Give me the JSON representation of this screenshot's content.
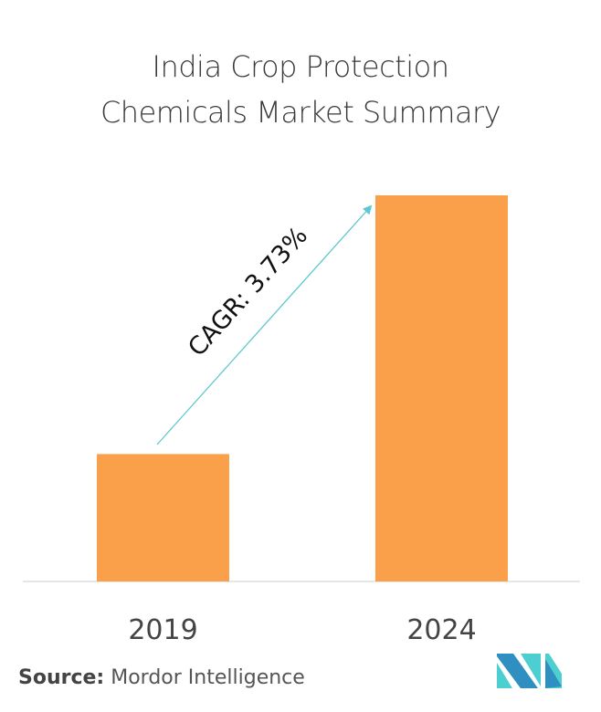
{
  "title_lines": [
    "India Crop Protection",
    "Chemicals Market Summary"
  ],
  "source": {
    "label": "Source:",
    "value": "Mordor Intelligence"
  },
  "colors": {
    "bar": "#FBA04A",
    "arrow": "#5CC8CF",
    "axis": "#CCCCCC",
    "logo_dark": "#2E8FC0",
    "logo_light": "#4DCFD2"
  },
  "chart_data": {
    "type": "bar",
    "categories": [
      "2019",
      "2024"
    ],
    "values": [
      0.33,
      1.0
    ],
    "value_units": "relative (no y-axis printed)",
    "annotation": "CAGR: 3.73%",
    "grid": false,
    "ylim": [
      0,
      1
    ]
  },
  "logo": {
    "name": "mordor-intelligence-logo"
  }
}
